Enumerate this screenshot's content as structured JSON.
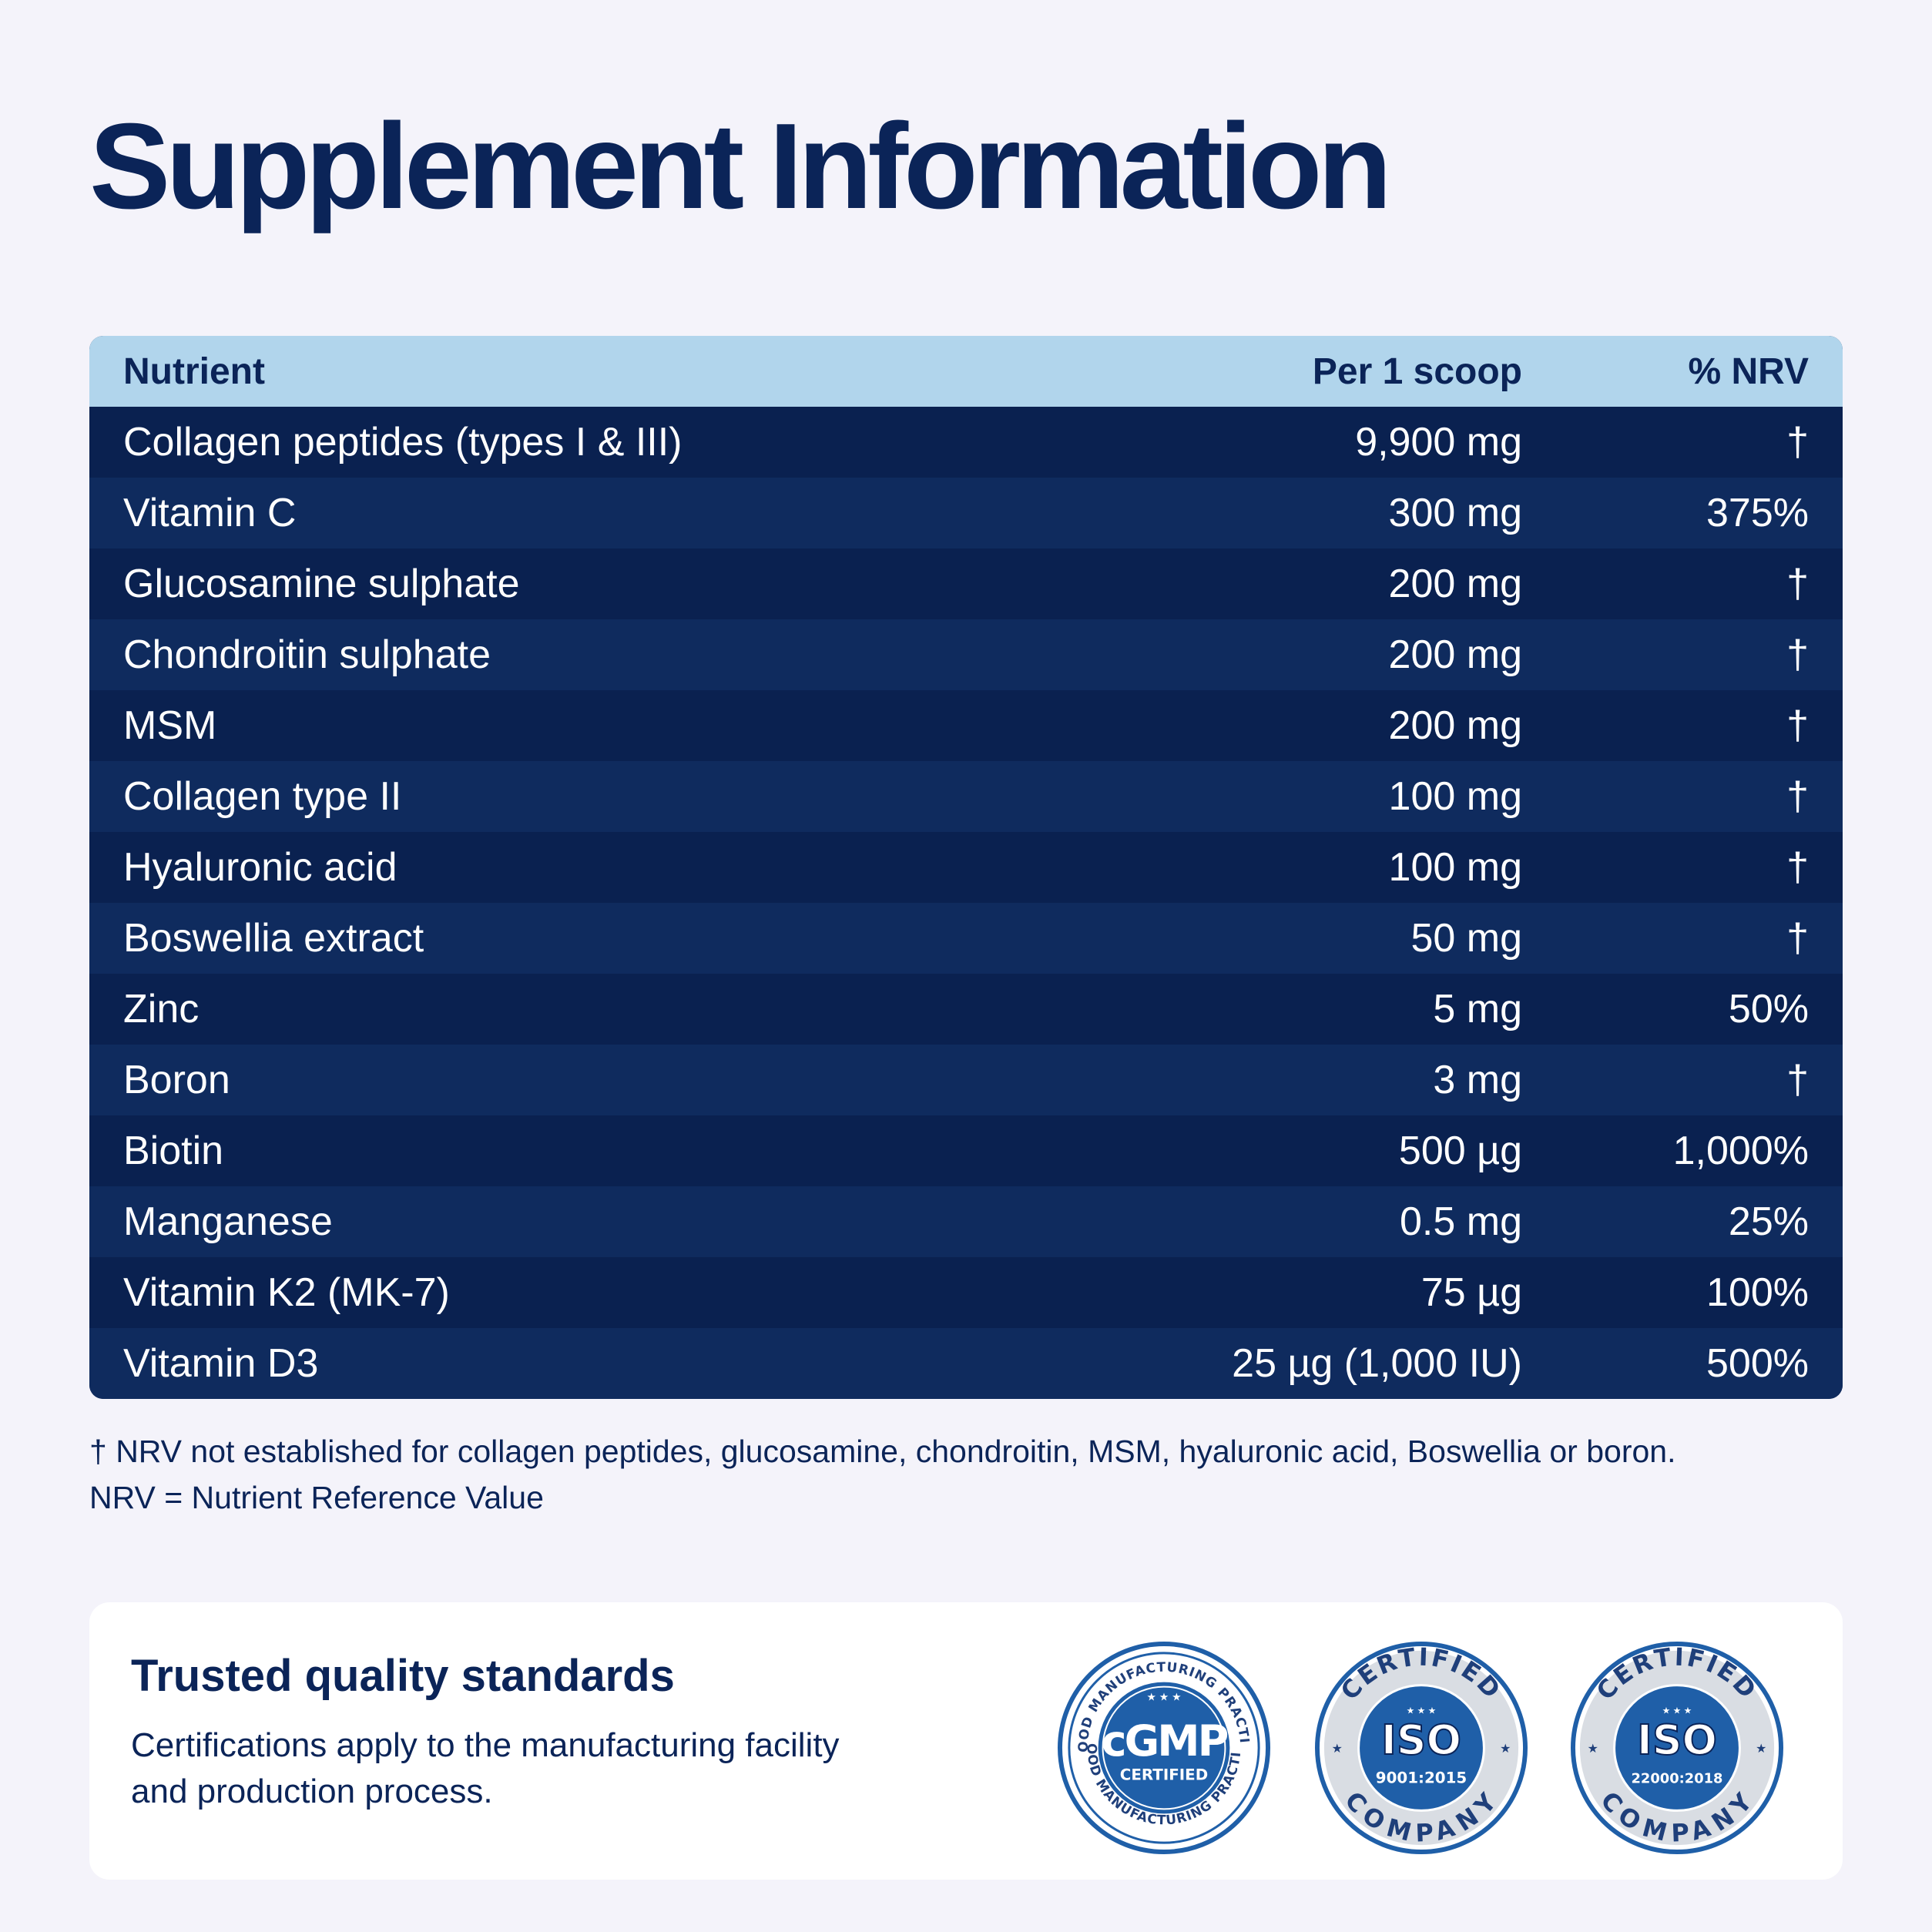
{
  "title": "Supplement Information",
  "table": {
    "headers": {
      "nutrient": "Nutrient",
      "amount": "Per 1 scoop",
      "nrv": "% NRV"
    },
    "rows": [
      {
        "nutrient": "Collagen peptides (types I & III)",
        "amount": "9,900 mg",
        "nrv": "†"
      },
      {
        "nutrient": "Vitamin C",
        "amount": "300 mg",
        "nrv": "375%"
      },
      {
        "nutrient": "Glucosamine sulphate",
        "amount": "200 mg",
        "nrv": "†"
      },
      {
        "nutrient": "Chondroitin sulphate",
        "amount": "200 mg",
        "nrv": "†"
      },
      {
        "nutrient": "MSM",
        "amount": "200 mg",
        "nrv": "†"
      },
      {
        "nutrient": "Collagen type II",
        "amount": "100 mg",
        "nrv": "†"
      },
      {
        "nutrient": "Hyaluronic acid",
        "amount": "100 mg",
        "nrv": "†"
      },
      {
        "nutrient": "Boswellia extract",
        "amount": "50 mg",
        "nrv": "†"
      },
      {
        "nutrient": "Zinc",
        "amount": "5 mg",
        "nrv": "50%"
      },
      {
        "nutrient": "Boron",
        "amount": "3 mg",
        "nrv": "†"
      },
      {
        "nutrient": "Biotin",
        "amount": "500 µg",
        "nrv": "1,000%"
      },
      {
        "nutrient": "Manganese",
        "amount": "0.5 mg",
        "nrv": "25%"
      },
      {
        "nutrient": "Vitamin K2 (MK-7)",
        "amount": "75 µg",
        "nrv": "100%"
      },
      {
        "nutrient": "Vitamin D3",
        "amount": "25 µg (1,000 IU)",
        "nrv": "500%"
      }
    ]
  },
  "notes": {
    "footnote": "† NRV not established for collagen peptides, glucosamine, chondroitin, MSM, hyaluronic acid, Boswellia or boron.",
    "definition": "NRV = Nutrient Reference Value"
  },
  "quality": {
    "title": "Trusted quality standards",
    "text": "Certifications apply to the manufacturing facility and production process.",
    "badges": [
      {
        "icon": "cgmp-badge-icon",
        "main": "cGMP",
        "sub": "CERTIFIED",
        "ring_top": "GOOD MANUFACTURING PRACTICE",
        "ring_bottom": "GOOD MANUFACTURING PRACTICE"
      },
      {
        "icon": "iso-9001-badge-icon",
        "main": "ISO",
        "sub": "9001:2015",
        "ring_top": "CERTIFIED",
        "ring_bottom": "COMPANY"
      },
      {
        "icon": "iso-22000-badge-icon",
        "main": "ISO",
        "sub": "22000:2018",
        "ring_top": "CERTIFIED",
        "ring_bottom": "COMPANY"
      }
    ]
  },
  "colors": {
    "navy": "#0b2458",
    "header_blue": "#b1d5ec",
    "row_dark": "#0a2150",
    "row_light": "#0f2b5e",
    "badge_blue": "#1f5fa8",
    "background": "#f4f3fa"
  }
}
